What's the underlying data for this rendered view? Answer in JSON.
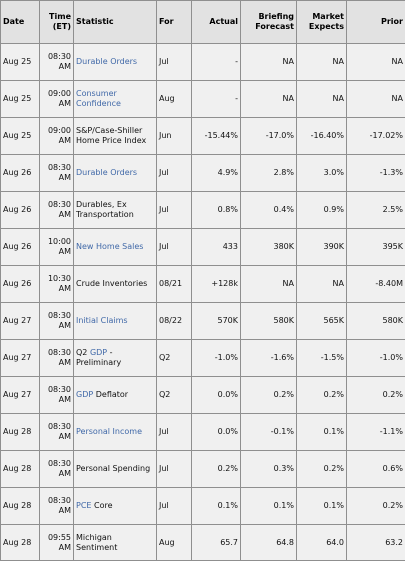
{
  "header": {
    "date": "Date",
    "time": "Time (ET)",
    "statistic": "Statistic",
    "for": "For",
    "actual": "Actual",
    "briefing": "Briefing Forecast",
    "market": "Market Expects",
    "prior": "Prior"
  },
  "rows": [
    {
      "date": "Aug 25",
      "time": "08:30",
      "ampm": "AM",
      "stat": "Durable Orders",
      "stat_suffix": "",
      "link": true,
      "for": "Jul",
      "actual": "-",
      "briefing": "NA",
      "market": "NA",
      "prior": "NA"
    },
    {
      "date": "Aug 25",
      "time": "09:00",
      "ampm": "AM",
      "stat": "Consumer Confidence",
      "stat_suffix": "",
      "link": true,
      "for": "Aug",
      "actual": "-",
      "briefing": "NA",
      "market": "NA",
      "prior": "NA"
    },
    {
      "date": "Aug 25",
      "time": "09:00",
      "ampm": "AM",
      "stat": "S&P/Case-Shiller Home Price Index",
      "stat_suffix": "",
      "link": false,
      "for": "Jun",
      "actual": "-15.44%",
      "briefing": "-17.0%",
      "market": "-16.40%",
      "prior": "-17.02%"
    },
    {
      "date": "Aug 26",
      "time": "08:30",
      "ampm": "AM",
      "stat": "Durable Orders",
      "stat_suffix": "",
      "link": true,
      "for": "Jul",
      "actual": "4.9%",
      "briefing": "2.8%",
      "market": "3.0%",
      "prior": "-1.3%"
    },
    {
      "date": "Aug 26",
      "time": "08:30",
      "ampm": "AM",
      "stat": "Durables, Ex Transportation",
      "stat_suffix": "",
      "link": false,
      "for": "Jul",
      "actual": "0.8%",
      "briefing": "0.4%",
      "market": "0.9%",
      "prior": "2.5%"
    },
    {
      "date": "Aug 26",
      "time": "10:00",
      "ampm": "AM",
      "stat": "New Home Sales",
      "stat_suffix": "",
      "link": true,
      "for": "Jul",
      "actual": "433",
      "briefing": "380K",
      "market": "390K",
      "prior": "395K"
    },
    {
      "date": "Aug 26",
      "time": "10:30",
      "ampm": "AM",
      "stat": "Crude Inventories",
      "stat_suffix": "",
      "link": false,
      "for": "08/21",
      "actual": "+128k",
      "briefing": "NA",
      "market": "NA",
      "prior": "-8.40M"
    },
    {
      "date": "Aug 27",
      "time": "08:30",
      "ampm": "AM",
      "stat": "Initial Claims",
      "stat_suffix": "",
      "link": true,
      "for": "08/22",
      "actual": "570K",
      "briefing": "580K",
      "market": "565K",
      "prior": "580K"
    },
    {
      "date": "Aug 27",
      "time": "08:30",
      "ampm": "AM",
      "stat_prefix": "Q2 ",
      "stat": "GDP",
      "stat_suffix": " - Preliminary",
      "link": true,
      "for": "Q2",
      "actual": "-1.0%",
      "briefing": "-1.6%",
      "market": "-1.5%",
      "prior": "-1.0%"
    },
    {
      "date": "Aug 27",
      "time": "08:30",
      "ampm": "AM",
      "stat": "GDP",
      "stat_suffix": " Deflator",
      "link": true,
      "for": "Q2",
      "actual": "0.0%",
      "briefing": "0.2%",
      "market": "0.2%",
      "prior": "0.2%"
    },
    {
      "date": "Aug 28",
      "time": "08:30",
      "ampm": "AM",
      "stat": "Personal Income",
      "stat_suffix": "",
      "link": true,
      "for": "Jul",
      "actual": "0.0%",
      "briefing": "-0.1%",
      "market": "0.1%",
      "prior": "-1.1%"
    },
    {
      "date": "Aug 28",
      "time": "08:30",
      "ampm": "AM",
      "stat": "Personal Spending",
      "stat_suffix": "",
      "link": false,
      "for": "Jul",
      "actual": "0.2%",
      "briefing": "0.3%",
      "market": "0.2%",
      "prior": "0.6%"
    },
    {
      "date": "Aug 28",
      "time": "08:30",
      "ampm": "AM",
      "stat": "PCE",
      "stat_suffix": " Core",
      "link": true,
      "for": "Jul",
      "actual": "0.1%",
      "briefing": "0.1%",
      "market": "0.1%",
      "prior": "0.2%"
    },
    {
      "date": "Aug 28",
      "time": "09:55",
      "ampm": "AM",
      "stat": "Michigan Sentiment",
      "stat_suffix": "",
      "link": false,
      "for": "Aug",
      "actual": "65.7",
      "briefing": "64.8",
      "market": "64.0",
      "prior": "63.2"
    }
  ],
  "colors": {
    "link": "#4169a8",
    "header_bg": "#e2e2e2",
    "row_bg": "#f0f0f0",
    "border": "#8f8f8f"
  }
}
